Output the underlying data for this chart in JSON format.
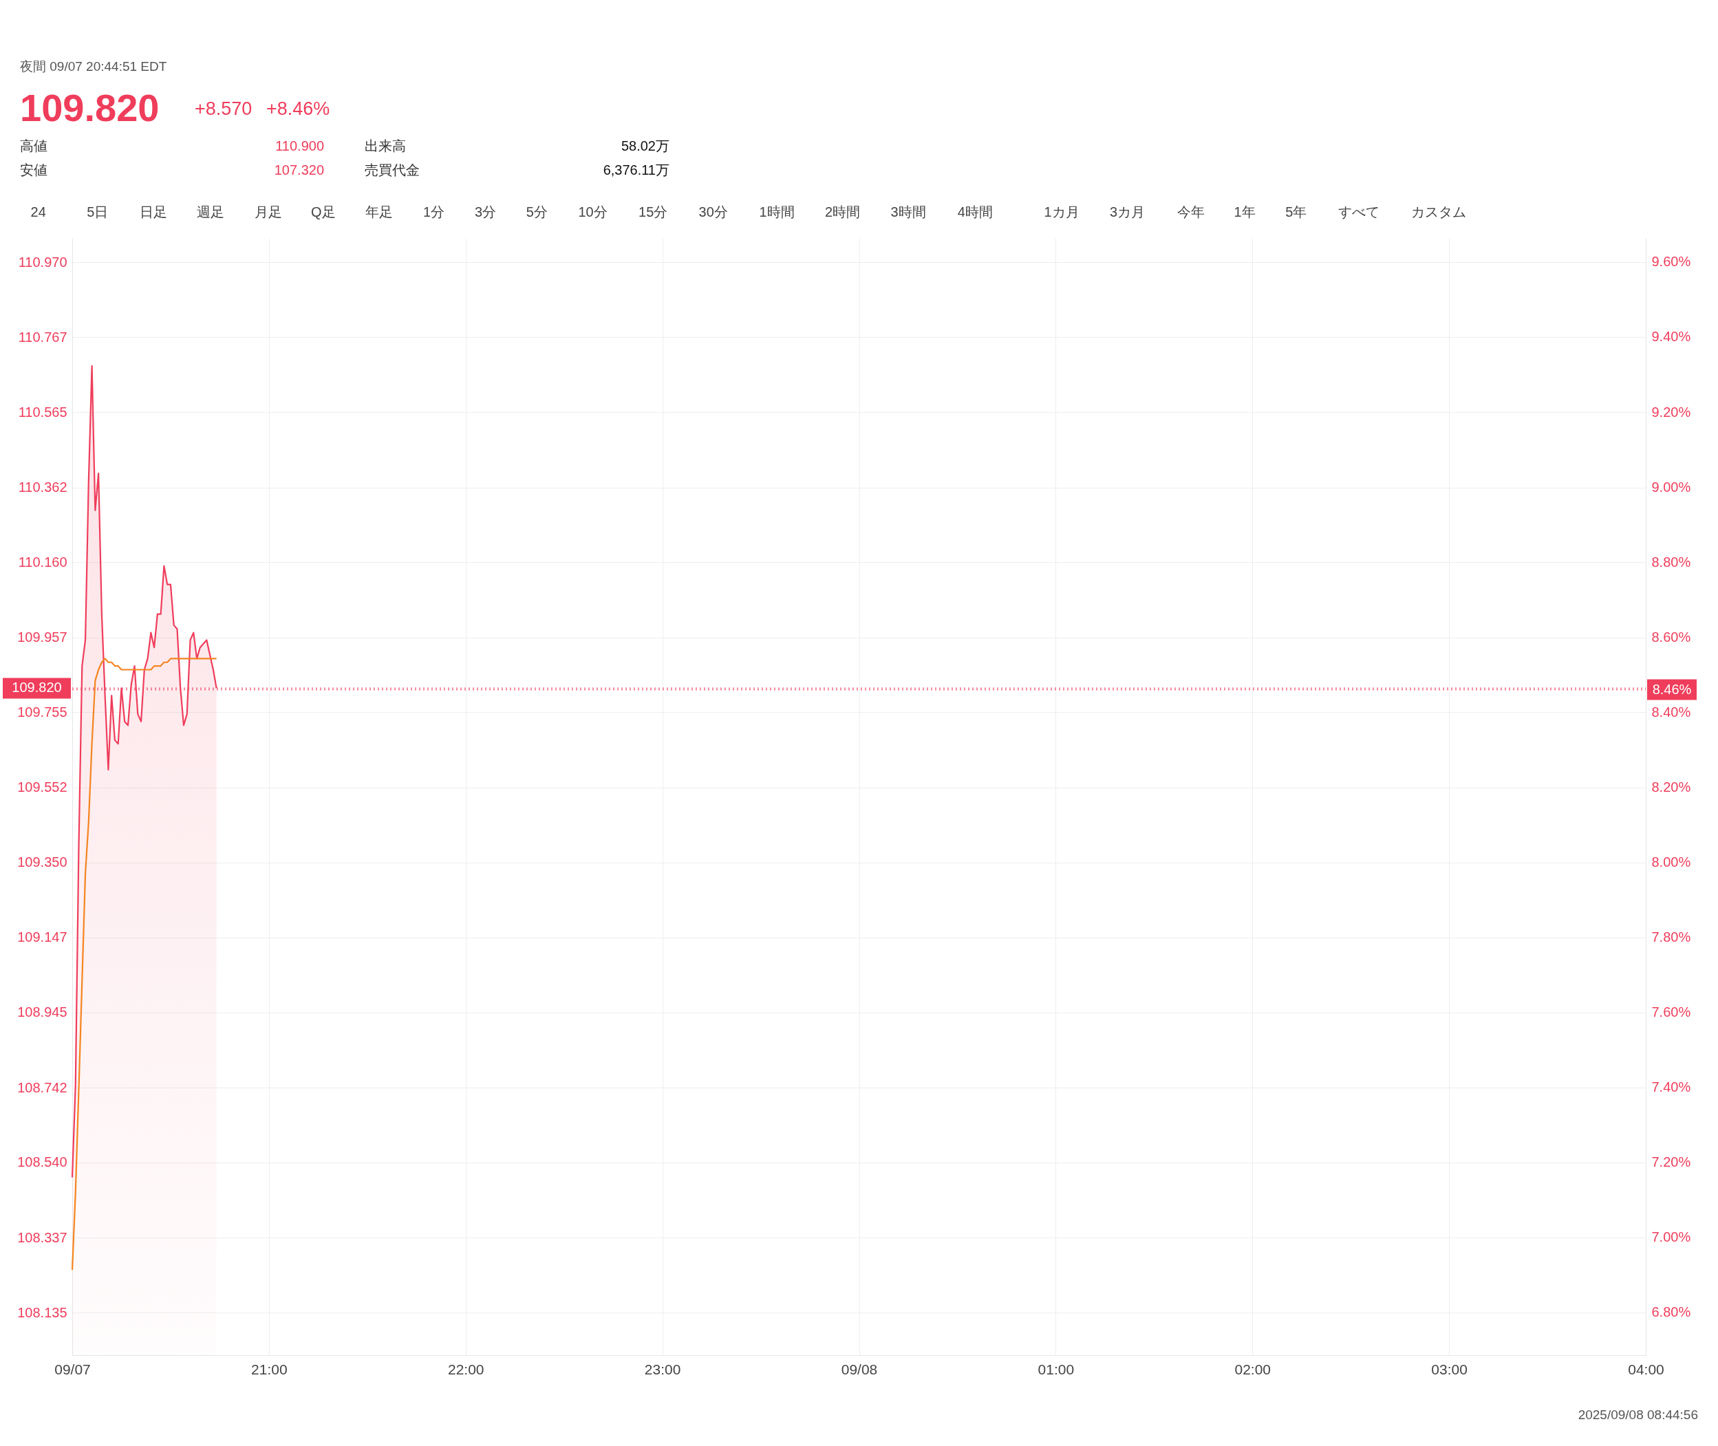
{
  "chart_data": {
    "type": "area",
    "title": "109.820",
    "subtitle": "夜間 09/07 20:44:51 EDT",
    "annotations": [
      "+8.570",
      "+8.46%",
      "高値",
      "110.900",
      "安値",
      "107.320",
      "出来高",
      "58.02万",
      "売買代金",
      "6,376.11万",
      "24",
      "5日",
      "日足",
      "週足",
      "月足",
      "Q足",
      "年足",
      "1分",
      "3分",
      "5分",
      "10分",
      "15分",
      "30分",
      "1時間",
      "2時間",
      "3時間",
      "4時間",
      "1カ月",
      "3カ月",
      "今年",
      "1年",
      "5年",
      "すべて",
      "カスタム",
      "2025/09/08 08:44:56"
    ],
    "series": [
      {
        "type": "area",
        "color": "#ef3d5b",
        "x": [
          "2025-09-07T20:00",
          "2025-09-07T20:01",
          "2025-09-07T20:02",
          "2025-09-07T20:03",
          "2025-09-07T20:04",
          "2025-09-07T20:05",
          "2025-09-07T20:06",
          "2025-09-07T20:07",
          "2025-09-07T20:08",
          "2025-09-07T20:09",
          "2025-09-07T20:10",
          "2025-09-07T20:11",
          "2025-09-07T20:12",
          "2025-09-07T20:13",
          "2025-09-07T20:14",
          "2025-09-07T20:15",
          "2025-09-07T20:16",
          "2025-09-07T20:17",
          "2025-09-07T20:18",
          "2025-09-07T20:19",
          "2025-09-07T20:20",
          "2025-09-07T20:21",
          "2025-09-07T20:22",
          "2025-09-07T20:23",
          "2025-09-07T20:24",
          "2025-09-07T20:25",
          "2025-09-07T20:26",
          "2025-09-07T20:27",
          "2025-09-07T20:28",
          "2025-09-07T20:29",
          "2025-09-07T20:30",
          "2025-09-07T20:31",
          "2025-09-07T20:32",
          "2025-09-07T20:33",
          "2025-09-07T20:34",
          "2025-09-07T20:35",
          "2025-09-07T20:36",
          "2025-09-07T20:37",
          "2025-09-07T20:38",
          "2025-09-07T20:39",
          "2025-09-07T20:40",
          "2025-09-07T20:41",
          "2025-09-07T20:42",
          "2025-09-07T20:43",
          "2025-09-07T20:44"
        ],
        "values": [
          108.5,
          108.75,
          109.4,
          109.88,
          109.95,
          110.38,
          110.69,
          110.3,
          110.4,
          110.02,
          109.8,
          109.6,
          109.8,
          109.68,
          109.67,
          109.82,
          109.73,
          109.72,
          109.83,
          109.88,
          109.75,
          109.73,
          109.87,
          109.9,
          109.97,
          109.93,
          110.02,
          110.02,
          110.15,
          110.1,
          110.1,
          109.99,
          109.98,
          109.82,
          109.72,
          109.75,
          109.95,
          109.97,
          109.9,
          109.93,
          109.94,
          109.95,
          109.91,
          109.87,
          109.82
        ]
      },
      {
        "type": "line",
        "color": "#f5841f",
        "x": [
          "2025-09-07T20:00",
          "2025-09-07T20:01",
          "2025-09-07T20:02",
          "2025-09-07T20:03",
          "2025-09-07T20:04",
          "2025-09-07T20:05",
          "2025-09-07T20:06",
          "2025-09-07T20:07",
          "2025-09-07T20:08",
          "2025-09-07T20:09",
          "2025-09-07T20:10",
          "2025-09-07T20:11",
          "2025-09-07T20:12",
          "2025-09-07T20:13",
          "2025-09-07T20:14",
          "2025-09-07T20:15",
          "2025-09-07T20:16",
          "2025-09-07T20:17",
          "2025-09-07T20:18",
          "2025-09-07T20:19",
          "2025-09-07T20:20",
          "2025-09-07T20:21",
          "2025-09-07T20:22",
          "2025-09-07T20:23",
          "2025-09-07T20:24",
          "2025-09-07T20:25",
          "2025-09-07T20:26",
          "2025-09-07T20:27",
          "2025-09-07T20:28",
          "2025-09-07T20:29",
          "2025-09-07T20:30",
          "2025-09-07T20:31",
          "2025-09-07T20:32",
          "2025-09-07T20:33",
          "2025-09-07T20:34",
          "2025-09-07T20:35",
          "2025-09-07T20:36",
          "2025-09-07T20:37",
          "2025-09-07T20:38",
          "2025-09-07T20:39",
          "2025-09-07T20:40",
          "2025-09-07T20:41",
          "2025-09-07T20:42",
          "2025-09-07T20:43",
          "2025-09-07T20:44"
        ],
        "values": [
          108.25,
          108.46,
          108.74,
          109.03,
          109.32,
          109.46,
          109.67,
          109.84,
          109.87,
          109.89,
          109.9,
          109.89,
          109.89,
          109.88,
          109.88,
          109.87,
          109.87,
          109.87,
          109.87,
          109.87,
          109.87,
          109.87,
          109.87,
          109.87,
          109.87,
          109.88,
          109.88,
          109.88,
          109.89,
          109.89,
          109.9,
          109.9,
          109.9,
          109.9,
          109.9,
          109.9,
          109.9,
          109.9,
          109.9,
          109.9,
          109.9,
          109.9,
          109.9,
          109.9,
          109.9
        ]
      }
    ],
    "xlim": [
      "2025-09-07T20:00",
      "2025-09-08T04:00"
    ],
    "xticks": [
      {
        "value": "2025-09-07T20:00",
        "label": "09/07"
      },
      {
        "value": "2025-09-07T21:00",
        "label": "21:00"
      },
      {
        "value": "2025-09-07T22:00",
        "label": "22:00"
      },
      {
        "value": "2025-09-07T23:00",
        "label": "23:00"
      },
      {
        "value": "2025-09-08T00:00",
        "label": "09/08"
      },
      {
        "value": "2025-09-08T01:00",
        "label": "01:00"
      },
      {
        "value": "2025-09-08T02:00",
        "label": "02:00"
      },
      {
        "value": "2025-09-08T03:00",
        "label": "03:00"
      },
      {
        "value": "2025-09-08T04:00",
        "label": "04:00"
      }
    ],
    "ylim": [
      108.02,
      111.035
    ],
    "yticks": [
      {
        "value": 108.135,
        "label": "108.135"
      },
      {
        "value": 108.337,
        "label": "108.337"
      },
      {
        "value": 108.54,
        "label": "108.540"
      },
      {
        "value": 108.742,
        "label": "108.742"
      },
      {
        "value": 108.945,
        "label": "108.945"
      },
      {
        "value": 109.147,
        "label": "109.147"
      },
      {
        "value": 109.35,
        "label": "109.350"
      },
      {
        "value": 109.552,
        "label": "109.552"
      },
      {
        "value": 109.755,
        "label": "109.755"
      },
      {
        "value": 109.957,
        "label": "109.957"
      },
      {
        "value": 110.16,
        "label": "110.160"
      },
      {
        "value": 110.362,
        "label": "110.362"
      },
      {
        "value": 110.565,
        "label": "110.565"
      },
      {
        "value": 110.767,
        "label": "110.767"
      },
      {
        "value": 110.97,
        "label": "110.970"
      }
    ],
    "y2lim": [
      6.686,
      9.664
    ],
    "y2ticks": [
      {
        "value": 6.8,
        "label": "6.80%"
      },
      {
        "value": 7.0,
        "label": "7.00%"
      },
      {
        "value": 7.2,
        "label": "7.20%"
      },
      {
        "value": 7.4,
        "label": "7.40%"
      },
      {
        "value": 7.6,
        "label": "7.60%"
      },
      {
        "value": 7.8,
        "label": "7.80%"
      },
      {
        "value": 8.0,
        "label": "8.00%"
      },
      {
        "value": 8.2,
        "label": "8.20%"
      },
      {
        "value": 8.4,
        "label": "8.40%"
      },
      {
        "value": 8.6,
        "label": "8.60%"
      },
      {
        "value": 8.8,
        "label": "8.80%"
      },
      {
        "value": 9.0,
        "label": "9.00%"
      },
      {
        "value": 9.2,
        "label": "9.20%"
      },
      {
        "value": 9.4,
        "label": "9.40%"
      },
      {
        "value": 9.6,
        "label": "9.60%"
      }
    ],
    "ref_lines": [
      {
        "axis": "y",
        "value": 109.82,
        "label": "109.820",
        "color": "#ef3d5b",
        "line_style": "dotted"
      },
      {
        "axis": "y2",
        "value": 8.46,
        "label": "8.46%",
        "color": "#ef3d5b",
        "line_style": "dotted"
      }
    ],
    "grid": true,
    "marker": "none",
    "line_style": "solid"
  }
}
